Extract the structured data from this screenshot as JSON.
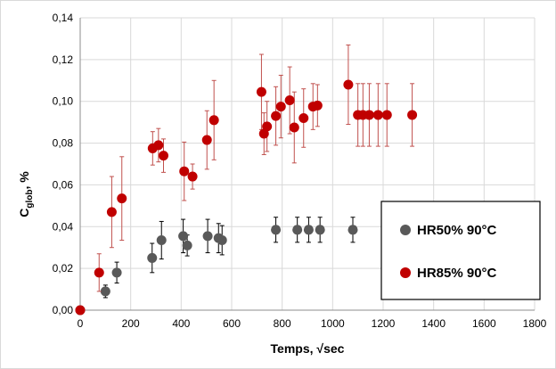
{
  "chart_data": {
    "type": "scatter",
    "title": "",
    "xlabel": "Temps, √sec",
    "ylabel": "Cglob, %",
    "ylabel_main": "C",
    "ylabel_sub": "glob",
    "ylabel_rest": ", %",
    "xlim": [
      0,
      1800
    ],
    "ylim": [
      0,
      0.14
    ],
    "x_ticks": [
      0,
      200,
      400,
      600,
      800,
      1000,
      1200,
      1400,
      1600,
      1800
    ],
    "x_tick_labels": [
      "0",
      "200",
      "400",
      "600",
      "800",
      "1000",
      "1200",
      "1400",
      "1600",
      "1800"
    ],
    "y_ticks": [
      0,
      0.02,
      0.04,
      0.06,
      0.08,
      0.1,
      0.12,
      0.14
    ],
    "y_tick_labels": [
      "0,00",
      "0,02",
      "0,04",
      "0,06",
      "0,08",
      "0,10",
      "0,12",
      "0,14"
    ],
    "grid": true,
    "legend_position": "bottom-right",
    "series": [
      {
        "name": "HR50% 90°C",
        "color": "#595959",
        "error_color": "#000000",
        "points": [
          {
            "x": 0,
            "y": 0.0,
            "err": 0
          },
          {
            "x": 100,
            "y": 0.009,
            "err": 0.003
          },
          {
            "x": 145,
            "y": 0.018,
            "err": 0.005
          },
          {
            "x": 285,
            "y": 0.025,
            "err": 0.007
          },
          {
            "x": 322,
            "y": 0.0335,
            "err": 0.009
          },
          {
            "x": 408,
            "y": 0.0355,
            "err": 0.008
          },
          {
            "x": 424,
            "y": 0.031,
            "err": 0.005
          },
          {
            "x": 505,
            "y": 0.0355,
            "err": 0.008
          },
          {
            "x": 548,
            "y": 0.0345,
            "err": 0.007
          },
          {
            "x": 562,
            "y": 0.0335,
            "err": 0.007
          },
          {
            "x": 775,
            "y": 0.0385,
            "err": 0.006
          },
          {
            "x": 860,
            "y": 0.0385,
            "err": 0.006
          },
          {
            "x": 905,
            "y": 0.0385,
            "err": 0.006
          },
          {
            "x": 950,
            "y": 0.0385,
            "err": 0.006
          },
          {
            "x": 1080,
            "y": 0.0385,
            "err": 0.006
          }
        ]
      },
      {
        "name": "HR85% 90°C",
        "color": "#c00000",
        "error_color": "#c0504d",
        "points": [
          {
            "x": 0,
            "y": 0.0,
            "err": 0
          },
          {
            "x": 75,
            "y": 0.018,
            "err": 0.009
          },
          {
            "x": 125,
            "y": 0.047,
            "err": 0.017
          },
          {
            "x": 165,
            "y": 0.0535,
            "err": 0.02
          },
          {
            "x": 287,
            "y": 0.0775,
            "err": 0.008
          },
          {
            "x": 310,
            "y": 0.079,
            "err": 0.008
          },
          {
            "x": 330,
            "y": 0.074,
            "err": 0.008
          },
          {
            "x": 412,
            "y": 0.0665,
            "err": 0.014
          },
          {
            "x": 445,
            "y": 0.064,
            "err": 0.006
          },
          {
            "x": 502,
            "y": 0.0815,
            "err": 0.014
          },
          {
            "x": 530,
            "y": 0.091,
            "err": 0.019
          },
          {
            "x": 718,
            "y": 0.1045,
            "err": 0.018
          },
          {
            "x": 728,
            "y": 0.0845,
            "err": 0.01
          },
          {
            "x": 740,
            "y": 0.088,
            "err": 0.012
          },
          {
            "x": 775,
            "y": 0.093,
            "err": 0.014
          },
          {
            "x": 795,
            "y": 0.0975,
            "err": 0.015
          },
          {
            "x": 830,
            "y": 0.1005,
            "err": 0.016
          },
          {
            "x": 848,
            "y": 0.0875,
            "err": 0.017
          },
          {
            "x": 885,
            "y": 0.092,
            "err": 0.014
          },
          {
            "x": 922,
            "y": 0.0975,
            "err": 0.011
          },
          {
            "x": 940,
            "y": 0.098,
            "err": 0.01
          },
          {
            "x": 1062,
            "y": 0.108,
            "err": 0.019
          },
          {
            "x": 1100,
            "y": 0.0935,
            "err": 0.015
          },
          {
            "x": 1120,
            "y": 0.0935,
            "err": 0.015
          },
          {
            "x": 1145,
            "y": 0.0935,
            "err": 0.015
          },
          {
            "x": 1180,
            "y": 0.0935,
            "err": 0.015
          },
          {
            "x": 1215,
            "y": 0.0935,
            "err": 0.015
          },
          {
            "x": 1315,
            "y": 0.0935,
            "err": 0.015
          }
        ]
      }
    ]
  }
}
